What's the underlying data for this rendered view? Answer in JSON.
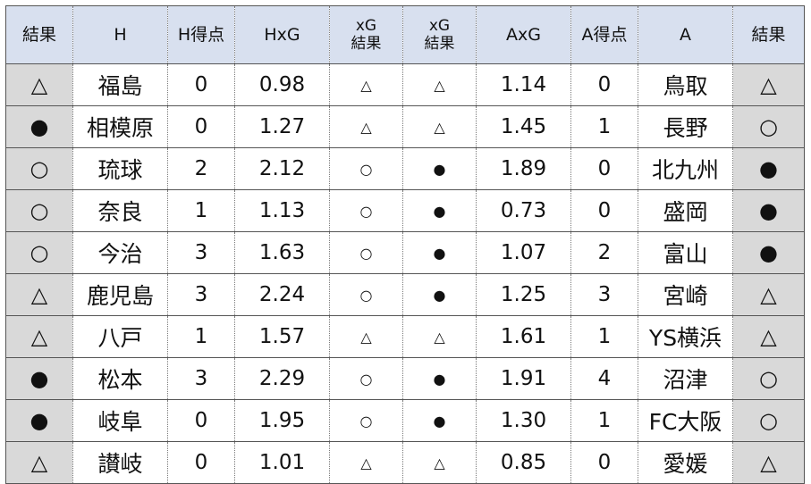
{
  "headers": {
    "h_result": "結果",
    "home": "H",
    "h_score": "H得点",
    "hxg": "HxG",
    "xg_res_h_top": "xG",
    "xg_res_h_bottom": "結果",
    "xg_res_a_top": "xG",
    "xg_res_a_bottom": "結果",
    "axg": "AxG",
    "a_score": "A得点",
    "away": "A",
    "a_result": "結果"
  },
  "rows": [
    {
      "h_result": "△",
      "home": "福島",
      "h_score": "0",
      "hxg": "0.98",
      "xg_h": "△",
      "xg_a": "△",
      "axg": "1.14",
      "a_score": "0",
      "away": "鳥取",
      "a_result": "△"
    },
    {
      "h_result": "●",
      "home": "相模原",
      "h_score": "0",
      "hxg": "1.27",
      "xg_h": "△",
      "xg_a": "△",
      "axg": "1.45",
      "a_score": "1",
      "away": "長野",
      "a_result": "○"
    },
    {
      "h_result": "○",
      "home": "琉球",
      "h_score": "2",
      "hxg": "2.12",
      "xg_h": "○",
      "xg_a": "●",
      "axg": "1.89",
      "a_score": "0",
      "away": "北九州",
      "a_result": "●"
    },
    {
      "h_result": "○",
      "home": "奈良",
      "h_score": "1",
      "hxg": "1.13",
      "xg_h": "○",
      "xg_a": "●",
      "axg": "0.73",
      "a_score": "0",
      "away": "盛岡",
      "a_result": "●"
    },
    {
      "h_result": "○",
      "home": "今治",
      "h_score": "3",
      "hxg": "1.63",
      "xg_h": "○",
      "xg_a": "●",
      "axg": "1.07",
      "a_score": "2",
      "away": "富山",
      "a_result": "●"
    },
    {
      "h_result": "△",
      "home": "鹿児島",
      "h_score": "3",
      "hxg": "2.24",
      "xg_h": "○",
      "xg_a": "●",
      "axg": "1.25",
      "a_score": "3",
      "away": "宮崎",
      "a_result": "△"
    },
    {
      "h_result": "△",
      "home": "八戸",
      "h_score": "1",
      "hxg": "1.57",
      "xg_h": "△",
      "xg_a": "△",
      "axg": "1.61",
      "a_score": "1",
      "away": "YS横浜",
      "a_result": "△"
    },
    {
      "h_result": "●",
      "home": "松本",
      "h_score": "3",
      "hxg": "2.29",
      "xg_h": "○",
      "xg_a": "●",
      "axg": "1.91",
      "a_score": "4",
      "away": "沼津",
      "a_result": "○"
    },
    {
      "h_result": "●",
      "home": "岐阜",
      "h_score": "0",
      "hxg": "1.95",
      "xg_h": "○",
      "xg_a": "●",
      "axg": "1.30",
      "a_score": "1",
      "away": "FC大阪",
      "a_result": "○"
    },
    {
      "h_result": "△",
      "home": "讃岐",
      "h_score": "0",
      "hxg": "1.01",
      "xg_h": "△",
      "xg_a": "△",
      "axg": "0.85",
      "a_score": "0",
      "away": "愛媛",
      "a_result": "△"
    }
  ],
  "colors": {
    "header_bg": "#d8e0ef",
    "result_bg": "#d9d9d9"
  }
}
